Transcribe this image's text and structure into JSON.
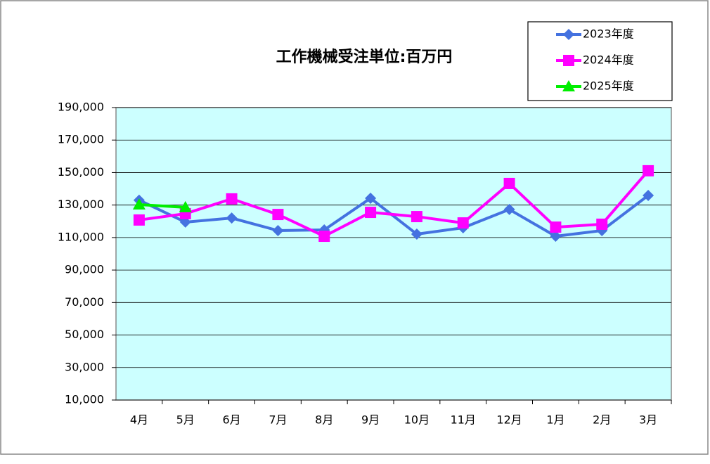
{
  "chart_data": {
    "type": "line",
    "title": "工作機械受注単位:百万円",
    "categories": [
      "4月",
      "5月",
      "6月",
      "7月",
      "8月",
      "9月",
      "10月",
      "11月",
      "12月",
      "1月",
      "2月",
      "3月"
    ],
    "series": [
      {
        "name": "2023年度",
        "color": "#4472e0",
        "marker": "diamond",
        "values": [
          133000,
          119500,
          122000,
          114300,
          114700,
          134200,
          112100,
          116000,
          127300,
          110800,
          114300,
          135900
        ]
      },
      {
        "name": "2024年度",
        "color": "#ff00ff",
        "marker": "square",
        "values": [
          120800,
          124700,
          133800,
          124200,
          110800,
          125500,
          122900,
          119000,
          143300,
          116400,
          118200,
          151100
        ]
      },
      {
        "name": "2025年度",
        "color": "#00ee00",
        "marker": "triangle",
        "values": [
          130300,
          128600,
          null,
          null,
          null,
          null,
          null,
          null,
          null,
          null,
          null,
          null
        ]
      }
    ],
    "ylim": [
      10000,
      190000
    ],
    "yticks": [
      {
        "value": 10000,
        "label": "10,000"
      },
      {
        "value": 30000,
        "label": "30,000"
      },
      {
        "value": 50000,
        "label": "50,000"
      },
      {
        "value": 70000,
        "label": "70,000"
      },
      {
        "value": 90000,
        "label": "90,000"
      },
      {
        "value": 110000,
        "label": "110,000"
      },
      {
        "value": 130000,
        "label": "130,000"
      },
      {
        "value": 150000,
        "label": "150,000"
      },
      {
        "value": 170000,
        "label": "170,000"
      },
      {
        "value": 190000,
        "label": "190,000"
      }
    ],
    "grid": true,
    "plot_background": "#ccffff",
    "legend": "top-right"
  }
}
